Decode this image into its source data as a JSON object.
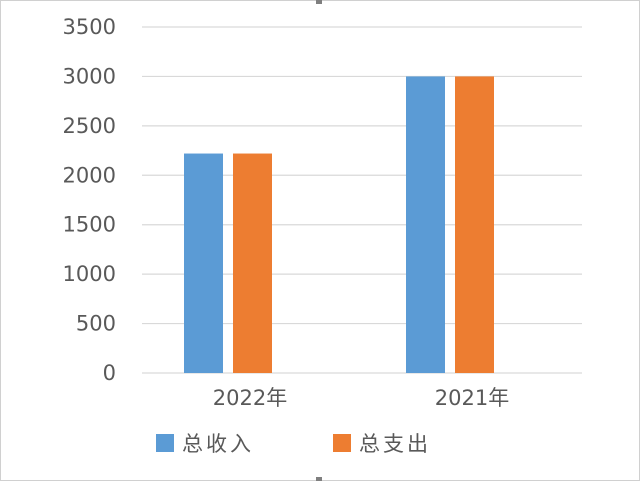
{
  "chart_data": {
    "type": "bar",
    "categories": [
      "2022年",
      "2021年"
    ],
    "series": [
      {
        "name": "总收入",
        "values": [
          2220,
          3000
        ]
      },
      {
        "name": "总支出",
        "values": [
          2220,
          3000
        ]
      }
    ],
    "yticks": [
      "0",
      "500",
      "1000",
      "1500",
      "2000",
      "2500",
      "3000",
      "3500"
    ],
    "ylim": [
      0,
      3500
    ],
    "grid": true,
    "legend": "bottom",
    "colors": [
      "#5B9BD5",
      "#ED7D31"
    ]
  }
}
